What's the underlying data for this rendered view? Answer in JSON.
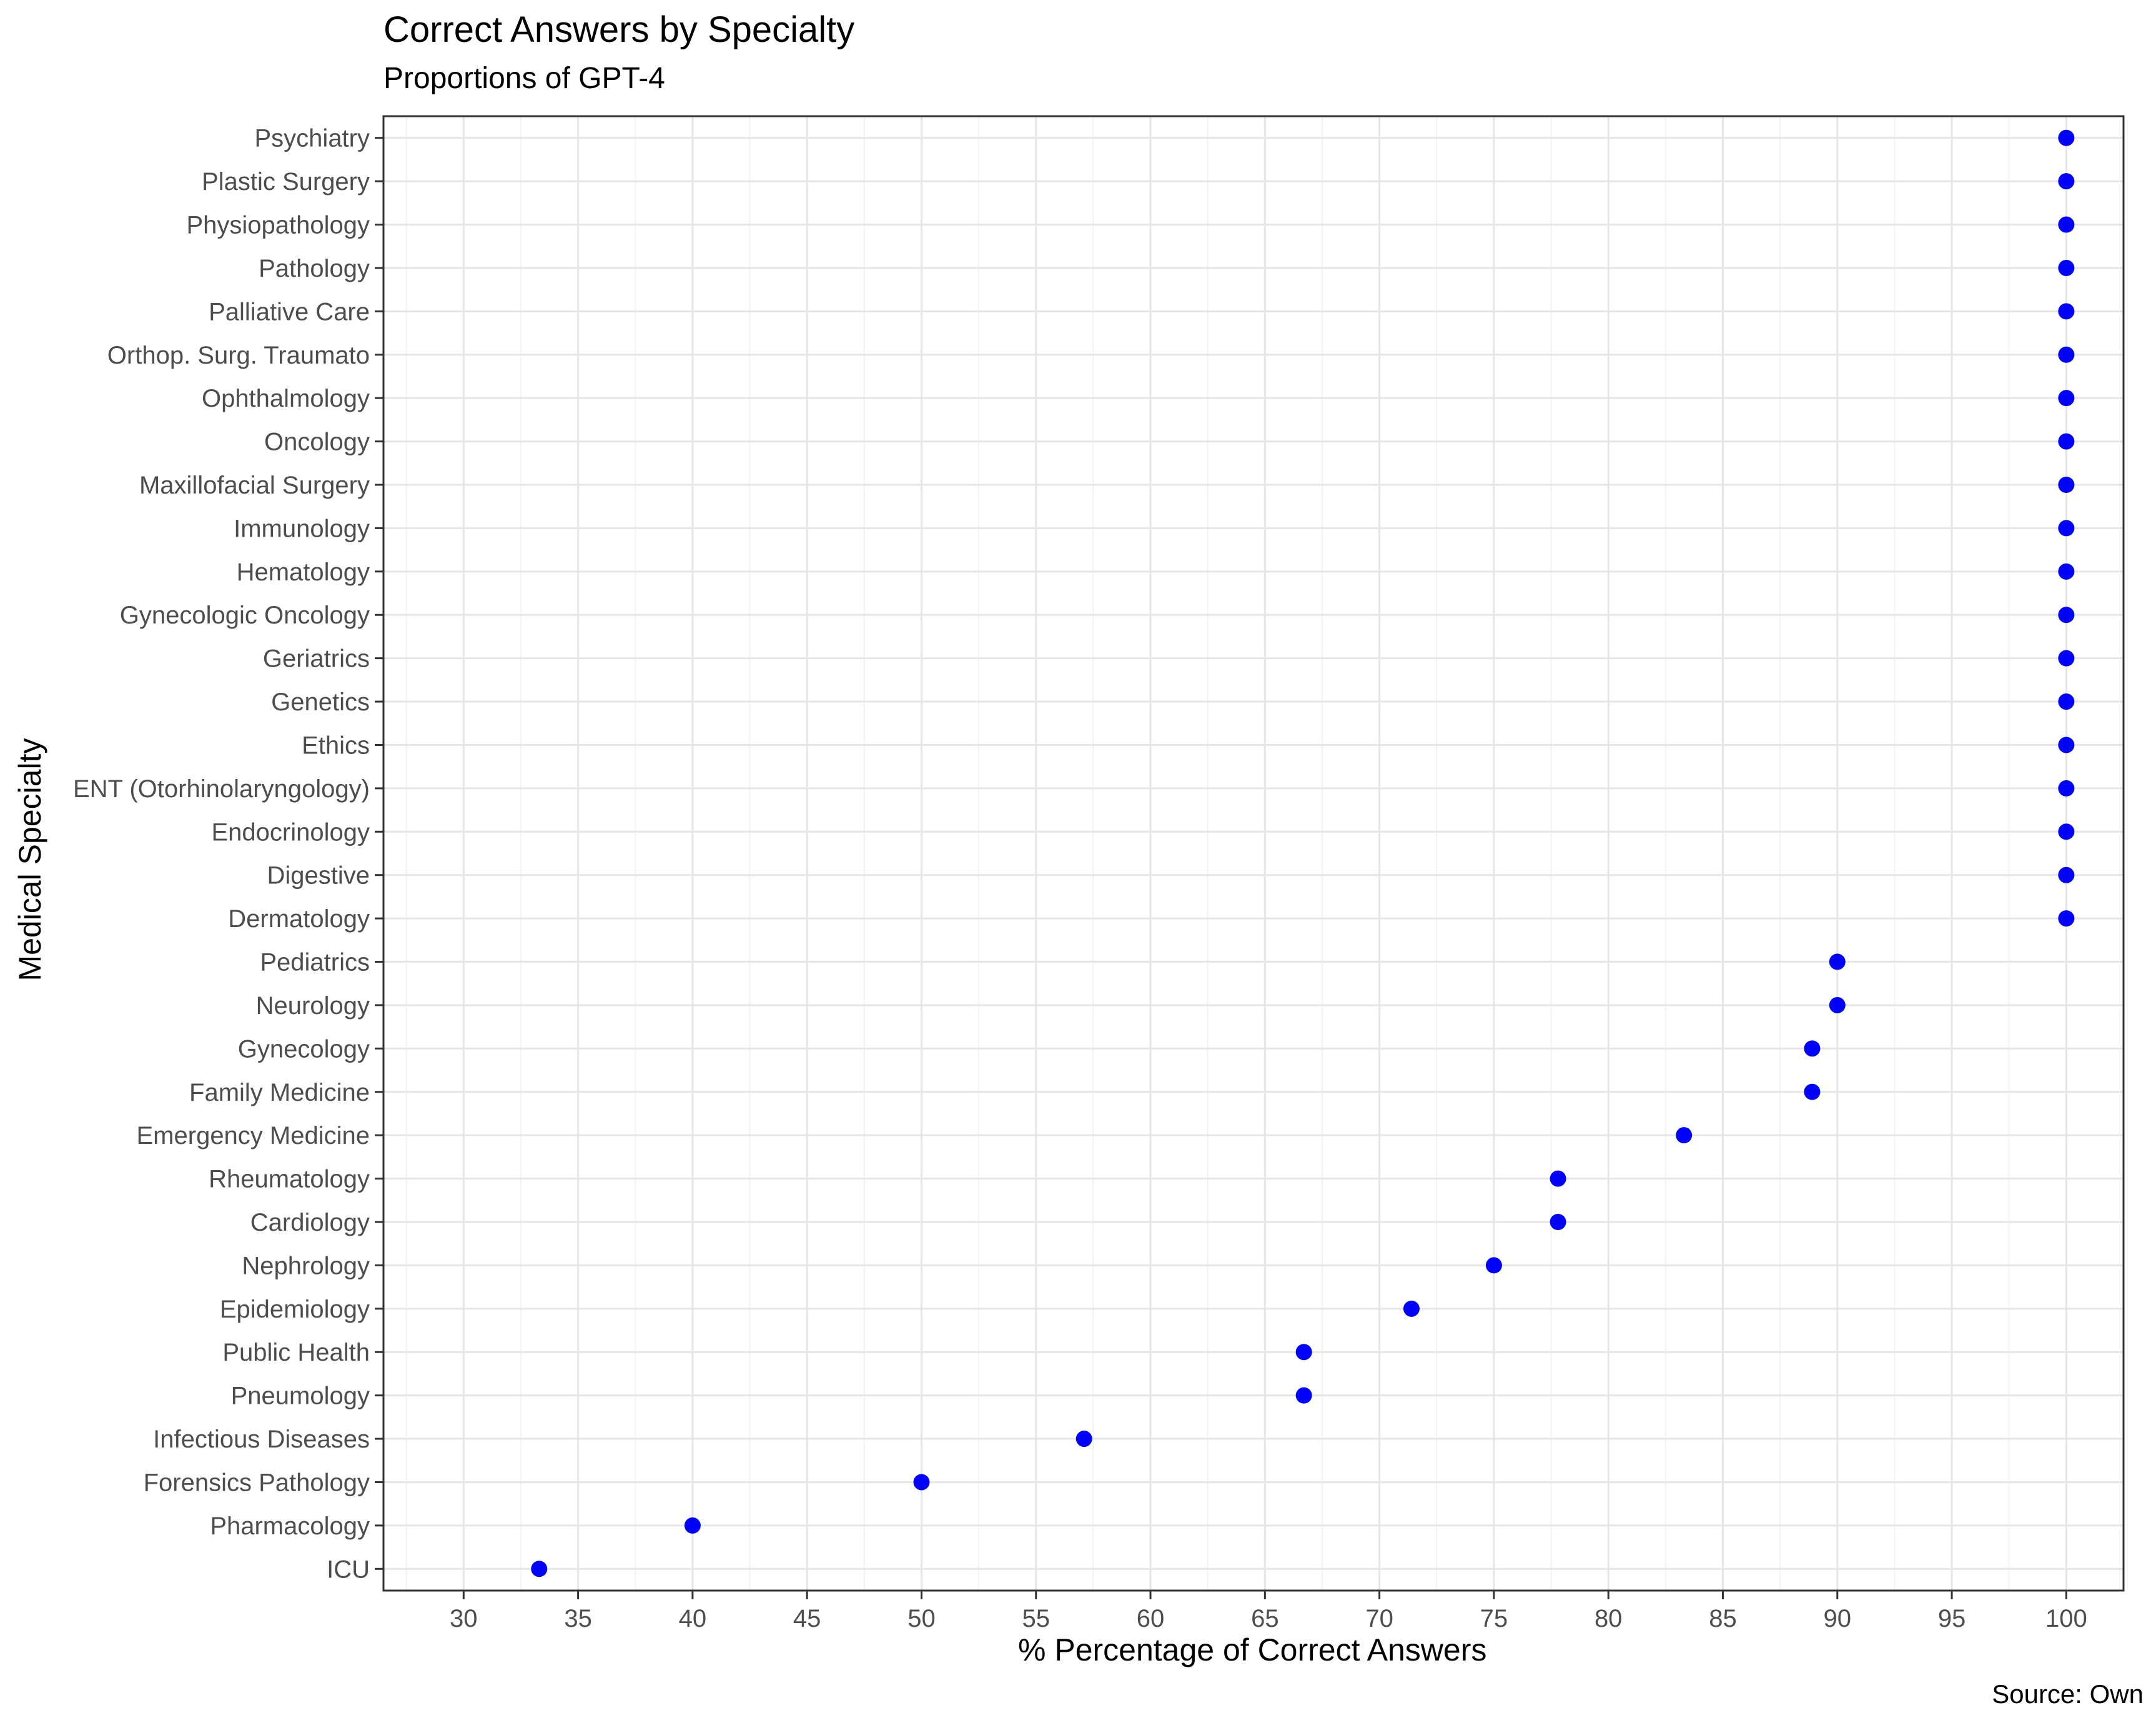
{
  "chart_data": {
    "type": "scatter",
    "title": "Correct Answers by Specialty",
    "subtitle": "Proportions of GPT-4",
    "xlabel": "% Percentage of Correct Answers",
    "ylabel": "Medical Specialty",
    "caption": "Source: Own",
    "xlim": [
      26.5,
      102.5
    ],
    "xticks": [
      30,
      35,
      40,
      45,
      50,
      55,
      60,
      65,
      70,
      75,
      80,
      85,
      90,
      95,
      100
    ],
    "grid": true,
    "point_color": "#0000ff",
    "points": [
      {
        "category": "Psychiatry",
        "value": 100
      },
      {
        "category": "Plastic Surgery",
        "value": 100
      },
      {
        "category": "Physiopathology",
        "value": 100
      },
      {
        "category": "Pathology",
        "value": 100
      },
      {
        "category": "Palliative Care",
        "value": 100
      },
      {
        "category": "Orthop. Surg. Traumato",
        "value": 100
      },
      {
        "category": "Ophthalmology",
        "value": 100
      },
      {
        "category": "Oncology",
        "value": 100
      },
      {
        "category": "Maxillofacial Surgery",
        "value": 100
      },
      {
        "category": "Immunology",
        "value": 100
      },
      {
        "category": "Hematology",
        "value": 100
      },
      {
        "category": "Gynecologic Oncology",
        "value": 100
      },
      {
        "category": "Geriatrics",
        "value": 100
      },
      {
        "category": "Genetics",
        "value": 100
      },
      {
        "category": "Ethics",
        "value": 100
      },
      {
        "category": "ENT (Otorhinolaryngology)",
        "value": 100
      },
      {
        "category": "Endocrinology",
        "value": 100
      },
      {
        "category": "Digestive",
        "value": 100
      },
      {
        "category": "Dermatology",
        "value": 100
      },
      {
        "category": "Pediatrics",
        "value": 90
      },
      {
        "category": "Neurology",
        "value": 90
      },
      {
        "category": "Gynecology",
        "value": 88.9
      },
      {
        "category": "Family Medicine",
        "value": 88.9
      },
      {
        "category": "Emergency Medicine",
        "value": 83.3
      },
      {
        "category": "Rheumatology",
        "value": 77.8
      },
      {
        "category": "Cardiology",
        "value": 77.8
      },
      {
        "category": "Nephrology",
        "value": 75
      },
      {
        "category": "Epidemiology",
        "value": 71.4
      },
      {
        "category": "Public Health",
        "value": 66.7
      },
      {
        "category": "Pneumology",
        "value": 66.7
      },
      {
        "category": "Infectious Diseases",
        "value": 57.1
      },
      {
        "category": "Forensics Pathology",
        "value": 50
      },
      {
        "category": "Pharmacology",
        "value": 40
      },
      {
        "category": "ICU",
        "value": 33.3
      }
    ]
  }
}
